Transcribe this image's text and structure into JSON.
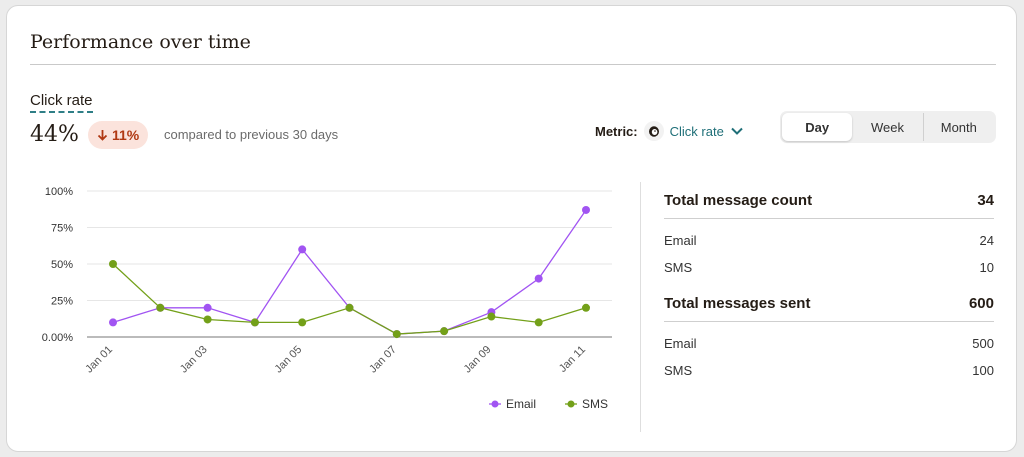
{
  "header": {
    "title": "Performance over time"
  },
  "summary": {
    "metric_label": "Click rate",
    "value": "44%",
    "change": "11%",
    "change_direction": "down",
    "compare_text": "compared to previous 30 days"
  },
  "metric_select": {
    "label": "Metric:",
    "value": "Click rate",
    "icon": "mailchimp-freddie-icon"
  },
  "range_tabs": [
    {
      "label": "Day",
      "active": true
    },
    {
      "label": "Week",
      "active": false
    },
    {
      "label": "Month",
      "active": false
    }
  ],
  "chart_data": {
    "type": "line",
    "x": [
      "Jan 01",
      "Jan 02",
      "Jan 03",
      "Jan 04",
      "Jan 05",
      "Jan 06",
      "Jan 07",
      "Jan 08",
      "Jan 09",
      "Jan 10",
      "Jan 11"
    ],
    "x_tick_labels": [
      "Jan 01",
      "Jan 03",
      "Jan 05",
      "Jan 07",
      "Jan 09",
      "Jan 11"
    ],
    "y_tick_labels": [
      "100%",
      "75%",
      "50%",
      "25%",
      "0.00%"
    ],
    "y_ticks": [
      100,
      75,
      50,
      25,
      0
    ],
    "ylim": [
      0,
      100
    ],
    "grid": true,
    "legend_position": "bottom-right",
    "series": [
      {
        "name": "Email",
        "color": "#a154f2",
        "values": [
          10,
          20,
          20,
          10,
          60,
          20,
          2,
          4,
          17,
          40,
          87
        ]
      },
      {
        "name": "SMS",
        "color": "#73a019",
        "values": [
          50,
          20,
          12,
          10,
          10,
          20,
          2,
          4,
          14,
          10,
          20
        ]
      }
    ]
  },
  "stats": {
    "message_count": {
      "label": "Total message count",
      "value": "34",
      "rows": [
        {
          "label": "Email",
          "value": "24"
        },
        {
          "label": "SMS",
          "value": "10"
        }
      ]
    },
    "messages_sent": {
      "label": "Total messages sent",
      "value": "600",
      "rows": [
        {
          "label": "Email",
          "value": "500"
        },
        {
          "label": "SMS",
          "value": "100"
        }
      ]
    }
  }
}
